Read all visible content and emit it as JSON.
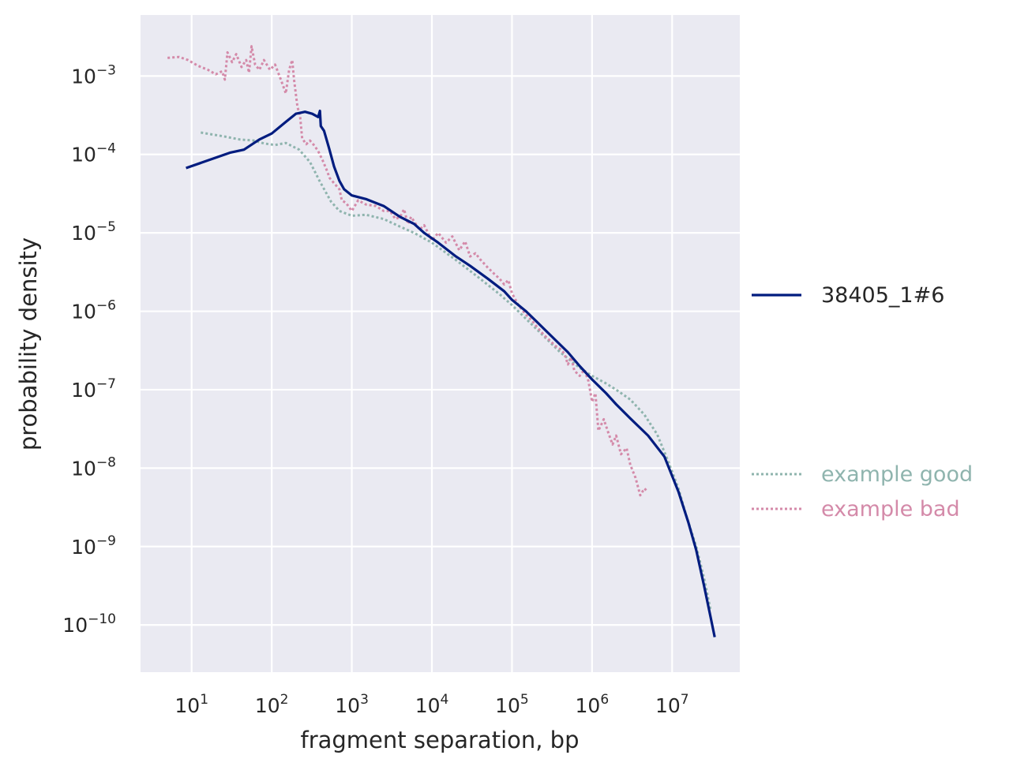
{
  "chart_data": {
    "type": "line",
    "title": "",
    "xlabel": "fragment separation, bp",
    "ylabel": "probability density",
    "xscale": "log",
    "yscale": "log",
    "xlim": [
      2.3,
      70000000
    ],
    "ylim": [
      2.5e-11,
      0.006
    ],
    "x_ticks": [
      {
        "base": "10",
        "exp": "1",
        "value": 10
      },
      {
        "base": "10",
        "exp": "2",
        "value": 100
      },
      {
        "base": "10",
        "exp": "3",
        "value": 1000
      },
      {
        "base": "10",
        "exp": "4",
        "value": 10000
      },
      {
        "base": "10",
        "exp": "5",
        "value": 100000
      },
      {
        "base": "10",
        "exp": "6",
        "value": 1000000
      },
      {
        "base": "10",
        "exp": "7",
        "value": 10000000
      }
    ],
    "y_ticks": [
      {
        "base": "10",
        "exp": "−3",
        "value": 0.001
      },
      {
        "base": "10",
        "exp": "−4",
        "value": 0.0001
      },
      {
        "base": "10",
        "exp": "−5",
        "value": 1e-05
      },
      {
        "base": "10",
        "exp": "−6",
        "value": 1e-06
      },
      {
        "base": "10",
        "exp": "−7",
        "value": 1e-07
      },
      {
        "base": "10",
        "exp": "−8",
        "value": 1e-08
      },
      {
        "base": "10",
        "exp": "−9",
        "value": 1e-09
      },
      {
        "base": "10",
        "exp": "−10",
        "value": 1e-10
      }
    ],
    "grid": true,
    "legend": "right",
    "series": [
      {
        "name": "38405_1#6",
        "color": "#001c7f",
        "style": "solid",
        "points": [
          [
            8.5,
            6.7e-05
          ],
          [
            15,
            8.2e-05
          ],
          [
            30,
            0.000105
          ],
          [
            45,
            0.000115
          ],
          [
            70,
            0.000155
          ],
          [
            100,
            0.000185
          ],
          [
            150,
            0.00026
          ],
          [
            200,
            0.00033
          ],
          [
            260,
            0.00035
          ],
          [
            320,
            0.00033
          ],
          [
            380,
            0.0003
          ],
          [
            400,
            0.00036
          ],
          [
            410,
            0.00023
          ],
          [
            450,
            0.0002
          ],
          [
            520,
            0.00012
          ],
          [
            600,
            7e-05
          ],
          [
            700,
            4.6e-05
          ],
          [
            800,
            3.6e-05
          ],
          [
            1000,
            3e-05
          ],
          [
            1500,
            2.7e-05
          ],
          [
            2500,
            2.2e-05
          ],
          [
            4000,
            1.6e-05
          ],
          [
            6000,
            1.3e-05
          ],
          [
            8000,
            1e-05
          ],
          [
            12000,
            7.5e-06
          ],
          [
            20000,
            5e-06
          ],
          [
            30000,
            3.8e-06
          ],
          [
            50000,
            2.6e-06
          ],
          [
            80000,
            1.8e-06
          ],
          [
            100000,
            1.4e-06
          ],
          [
            150000,
            1e-06
          ],
          [
            200000,
            7.5e-07
          ],
          [
            300000,
            5e-07
          ],
          [
            500000,
            3e-07
          ],
          [
            700000,
            2e-07
          ],
          [
            1000000,
            1.35e-07
          ],
          [
            1500000,
            9e-08
          ],
          [
            2000000,
            6.5e-08
          ],
          [
            3000000,
            4.3e-08
          ],
          [
            5000000,
            2.6e-08
          ],
          [
            8000000,
            1.4e-08
          ],
          [
            12000000,
            5e-09
          ],
          [
            16000000,
            2e-09
          ],
          [
            20000000,
            9e-10
          ],
          [
            25000000,
            3.2e-10
          ],
          [
            30000000,
            1.3e-10
          ],
          [
            34000000,
            7e-11
          ]
        ]
      },
      {
        "name": "example good",
        "color": "#8fb4ae",
        "style": "dotted",
        "points": [
          [
            13,
            0.00019
          ],
          [
            25,
            0.00017
          ],
          [
            40,
            0.000155
          ],
          [
            60,
            0.00015
          ],
          [
            80,
            0.000138
          ],
          [
            110,
            0.000132
          ],
          [
            150,
            0.00014
          ],
          [
            220,
            0.000115
          ],
          [
            300,
            8e-05
          ],
          [
            400,
            4.5e-05
          ],
          [
            550,
            2.5e-05
          ],
          [
            700,
            1.9e-05
          ],
          [
            1000,
            1.65e-05
          ],
          [
            1500,
            1.7e-05
          ],
          [
            2500,
            1.5e-05
          ],
          [
            4000,
            1.2e-05
          ],
          [
            6000,
            1e-05
          ],
          [
            10000,
            7.5e-06
          ],
          [
            20000,
            4.5e-06
          ],
          [
            40000,
            2.6e-06
          ],
          [
            70000,
            1.65e-06
          ],
          [
            100000,
            1.2e-06
          ],
          [
            200000,
            6e-07
          ],
          [
            400000,
            3e-07
          ],
          [
            700000,
            1.9e-07
          ],
          [
            1000000,
            1.5e-07
          ],
          [
            1500000,
            1.2e-07
          ],
          [
            2000000,
            1e-07
          ],
          [
            3000000,
            7.5e-08
          ],
          [
            4500000,
            4.8e-08
          ],
          [
            6500000,
            2.7e-08
          ],
          [
            9000000,
            1.2e-08
          ],
          [
            12000000,
            5.5e-09
          ],
          [
            15000000,
            2.5e-09
          ],
          [
            20000000,
            1e-09
          ],
          [
            25000000,
            4e-10
          ],
          [
            30000000,
            1.6e-10
          ]
        ]
      },
      {
        "name": "example bad",
        "color": "#d48aa9",
        "style": "dotted",
        "points": [
          [
            5,
            0.0017
          ],
          [
            7,
            0.00175
          ],
          [
            9,
            0.0016
          ],
          [
            12,
            0.00135
          ],
          [
            16,
            0.0012
          ],
          [
            20,
            0.00105
          ],
          [
            24,
            0.00115
          ],
          [
            26,
            0.0009
          ],
          [
            28,
            0.002
          ],
          [
            32,
            0.0015
          ],
          [
            36,
            0.0019
          ],
          [
            42,
            0.0013
          ],
          [
            48,
            0.0016
          ],
          [
            52,
            0.0011
          ],
          [
            56,
            0.0024
          ],
          [
            62,
            0.0014
          ],
          [
            70,
            0.0012
          ],
          [
            80,
            0.0016
          ],
          [
            95,
            0.0012
          ],
          [
            110,
            0.0014
          ],
          [
            130,
            0.0009
          ],
          [
            150,
            0.0006
          ],
          [
            165,
            0.0012
          ],
          [
            180,
            0.0016
          ],
          [
            190,
            0.0009
          ],
          [
            210,
            0.0004
          ],
          [
            225,
            0.00032
          ],
          [
            240,
            0.00016
          ],
          [
            270,
            0.000135
          ],
          [
            300,
            0.00015
          ],
          [
            340,
            0.00013
          ],
          [
            380,
            0.00011
          ],
          [
            430,
            8.5e-05
          ],
          [
            480,
            6.5e-05
          ],
          [
            530,
            5e-05
          ],
          [
            600,
            4.3e-05
          ],
          [
            700,
            3.6e-05
          ],
          [
            750,
            2.6e-05
          ],
          [
            850,
            2.4e-05
          ],
          [
            1000,
            1.9e-05
          ],
          [
            1200,
            2.6e-05
          ],
          [
            1500,
            2.3e-05
          ],
          [
            2000,
            2.2e-05
          ],
          [
            2500,
            1.9e-05
          ],
          [
            3000,
            1.9e-05
          ],
          [
            3500,
            1.5e-05
          ],
          [
            4000,
            1.6e-05
          ],
          [
            4500,
            2e-05
          ],
          [
            5000,
            1.3e-05
          ],
          [
            5500,
            1.6e-05
          ],
          [
            7000,
            1.1e-05
          ],
          [
            8000,
            1.25e-05
          ],
          [
            10000,
            8e-06
          ],
          [
            12000,
            1e-05
          ],
          [
            15000,
            7.5e-06
          ],
          [
            18000,
            9e-06
          ],
          [
            22000,
            6e-06
          ],
          [
            26000,
            7.8e-06
          ],
          [
            30000,
            5e-06
          ],
          [
            35000,
            5.5e-06
          ],
          [
            40000,
            4.6e-06
          ],
          [
            50000,
            3.6e-06
          ],
          [
            60000,
            3e-06
          ],
          [
            70000,
            2.6e-06
          ],
          [
            80000,
            2.2e-06
          ],
          [
            90000,
            2.5e-06
          ],
          [
            100000,
            1.7e-06
          ],
          [
            120000,
            1.2e-06
          ],
          [
            150000,
            9e-07
          ],
          [
            180000,
            7.5e-07
          ],
          [
            200000,
            6.5e-07
          ],
          [
            250000,
            5e-07
          ],
          [
            300000,
            4.2e-07
          ],
          [
            350000,
            3.6e-07
          ],
          [
            400000,
            3.3e-07
          ],
          [
            450000,
            2.9e-07
          ],
          [
            500000,
            2.1e-07
          ],
          [
            550000,
            2.6e-07
          ],
          [
            600000,
            1.75e-07
          ],
          [
            700000,
            1.5e-07
          ],
          [
            800000,
            1.8e-07
          ],
          [
            900000,
            1.3e-07
          ],
          [
            1000000,
            7e-08
          ],
          [
            1100000,
            9e-08
          ],
          [
            1200000,
            3e-08
          ],
          [
            1400000,
            4.2e-08
          ],
          [
            1600000,
            2.8e-08
          ],
          [
            1800000,
            2e-08
          ],
          [
            2000000,
            2.6e-08
          ],
          [
            2300000,
            1.5e-08
          ],
          [
            2700000,
            1.8e-08
          ],
          [
            3000000,
            1.1e-08
          ],
          [
            3500000,
            7.5e-09
          ],
          [
            4000000,
            4.5e-09
          ],
          [
            4500000,
            5.5e-09
          ],
          [
            5000000,
            5e-09
          ]
        ]
      }
    ]
  }
}
